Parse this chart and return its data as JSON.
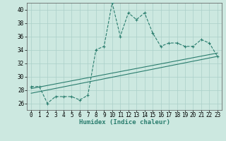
{
  "xlabel": "Humidex (Indice chaleur)",
  "xlim": [
    -0.5,
    23.5
  ],
  "ylim": [
    25,
    41
  ],
  "yticks": [
    26,
    28,
    30,
    32,
    34,
    36,
    38,
    40
  ],
  "xticks": [
    0,
    1,
    2,
    3,
    4,
    5,
    6,
    7,
    8,
    9,
    10,
    11,
    12,
    13,
    14,
    15,
    16,
    17,
    18,
    19,
    20,
    21,
    22,
    23
  ],
  "humidex_x": [
    0,
    1,
    2,
    3,
    4,
    5,
    6,
    7,
    8,
    9,
    10,
    11,
    12,
    13,
    14,
    15,
    16,
    17,
    18,
    19,
    20,
    21,
    22,
    23
  ],
  "humidex_y": [
    28.5,
    28.5,
    26.0,
    27.0,
    27.0,
    27.0,
    26.5,
    27.2,
    34.0,
    34.5,
    41.0,
    36.0,
    39.5,
    38.5,
    39.5,
    36.5,
    34.5,
    35.0,
    35.0,
    34.5,
    34.5,
    35.5,
    35.0,
    33.0
  ],
  "trend_x": [
    0,
    23
  ],
  "trend_y": [
    27.5,
    33.0
  ],
  "trend2_x": [
    0,
    23
  ],
  "trend2_y": [
    28.2,
    33.5
  ],
  "line_color": "#2a7d6e",
  "bg_color": "#cce8e0",
  "grid_color": "#aacfc8",
  "label_fontsize": 6.5,
  "tick_fontsize": 5.5
}
